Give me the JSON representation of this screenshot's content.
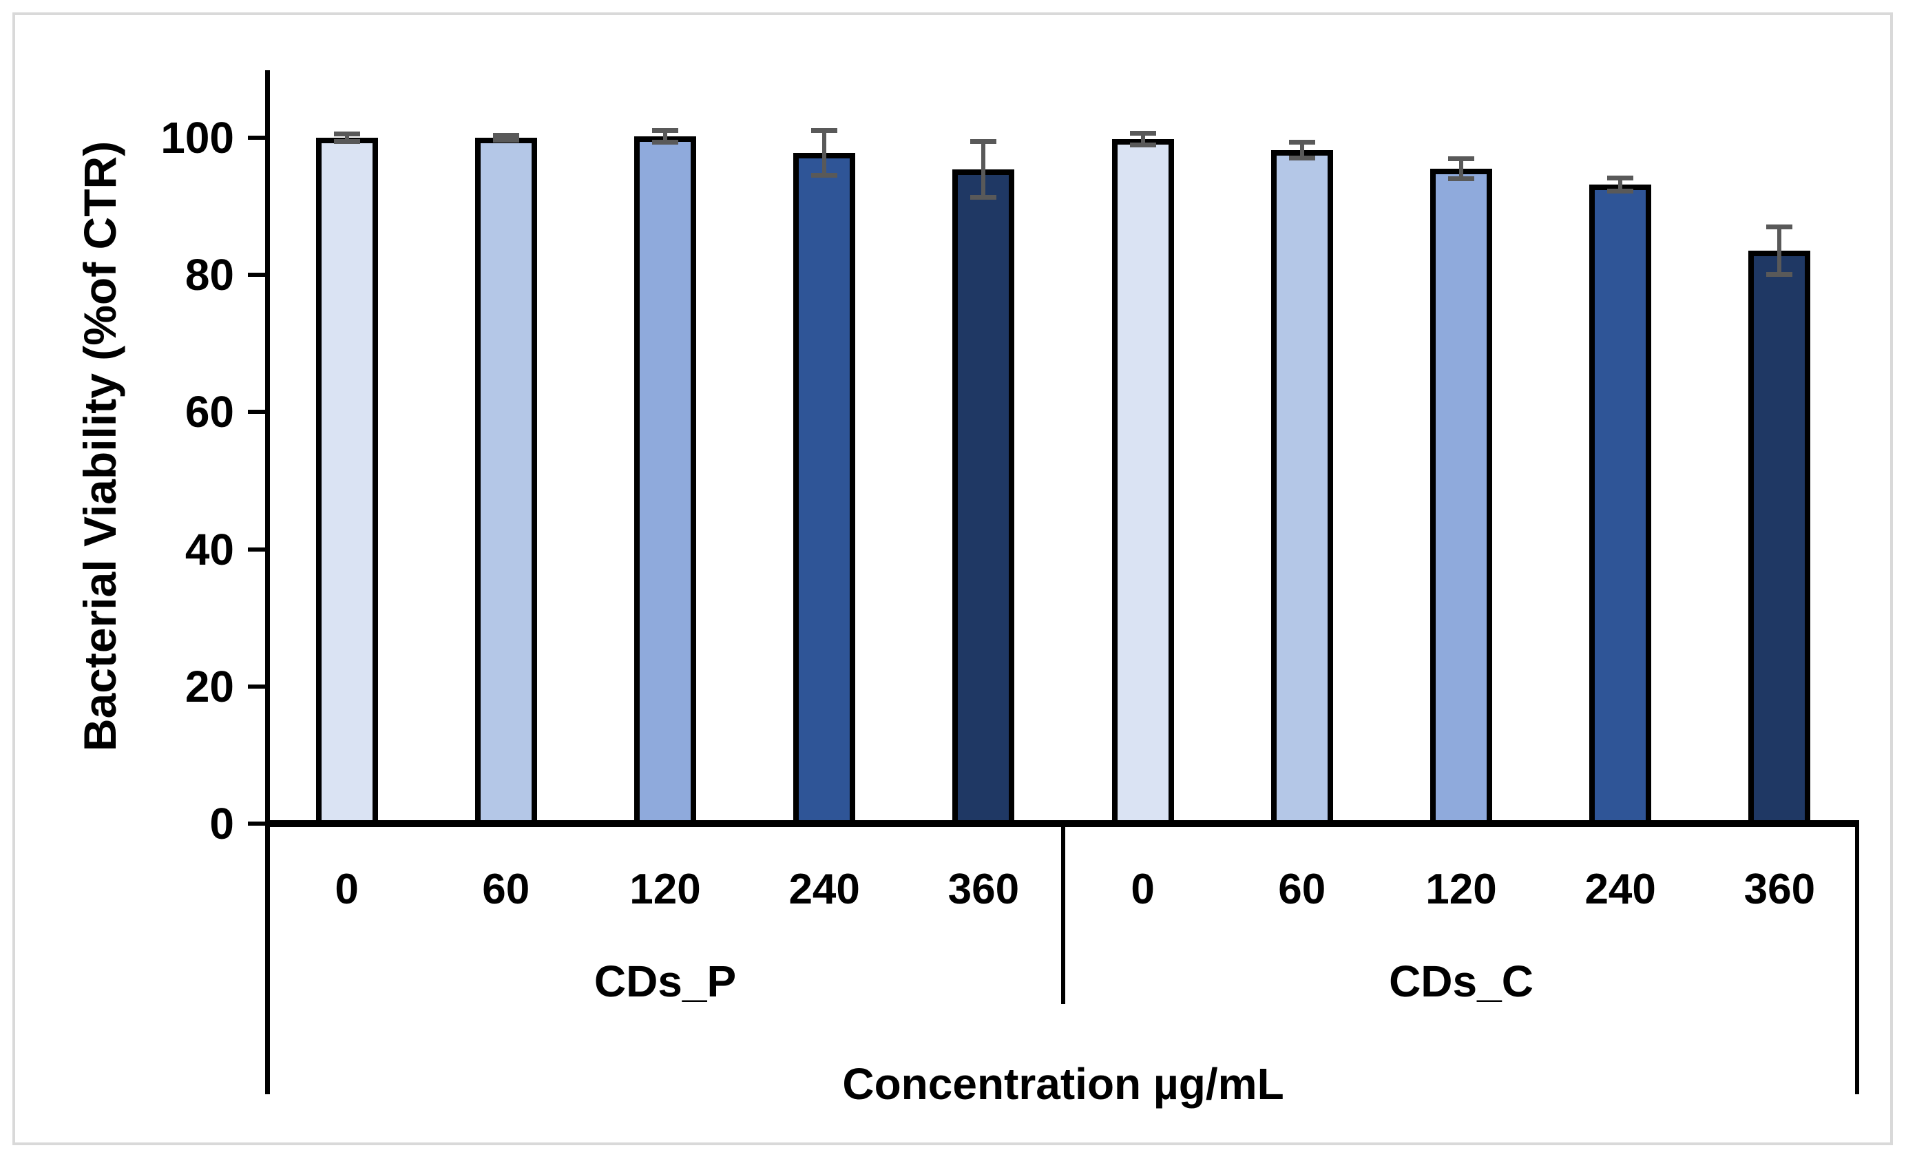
{
  "figure": {
    "background": "#ffffff",
    "frame_color": "#d9d9d9"
  },
  "chart_data": {
    "type": "bar",
    "title": "",
    "ylabel": "Bacterial Viability (%of CTR)",
    "xlabel": "Concentration µg/mL",
    "ylim": [
      0,
      110
    ],
    "yticks": [
      0,
      20,
      40,
      60,
      80,
      100
    ],
    "grid": false,
    "legend": "none",
    "bar_palette": [
      "#DAE3F3",
      "#B4C7E7",
      "#8FAADC",
      "#2F5597",
      "#1F3864"
    ],
    "bar_border_color": "#000000",
    "error_bar_color": "#595959",
    "groups": [
      {
        "label": "CDs_P",
        "categories": [
          "0",
          "60",
          "120",
          "240",
          "360"
        ],
        "values": [
          100,
          100,
          100.2,
          97.8,
          95.4
        ],
        "errors": [
          0.7,
          0.5,
          1.0,
          3.4,
          4.2
        ]
      },
      {
        "label": "CDs_C",
        "categories": [
          "0",
          "60",
          "120",
          "240",
          "360"
        ],
        "values": [
          99.8,
          98.2,
          95.5,
          93.2,
          83.5
        ],
        "errors": [
          1.0,
          1.3,
          1.6,
          1.1,
          3.6
        ]
      }
    ]
  }
}
